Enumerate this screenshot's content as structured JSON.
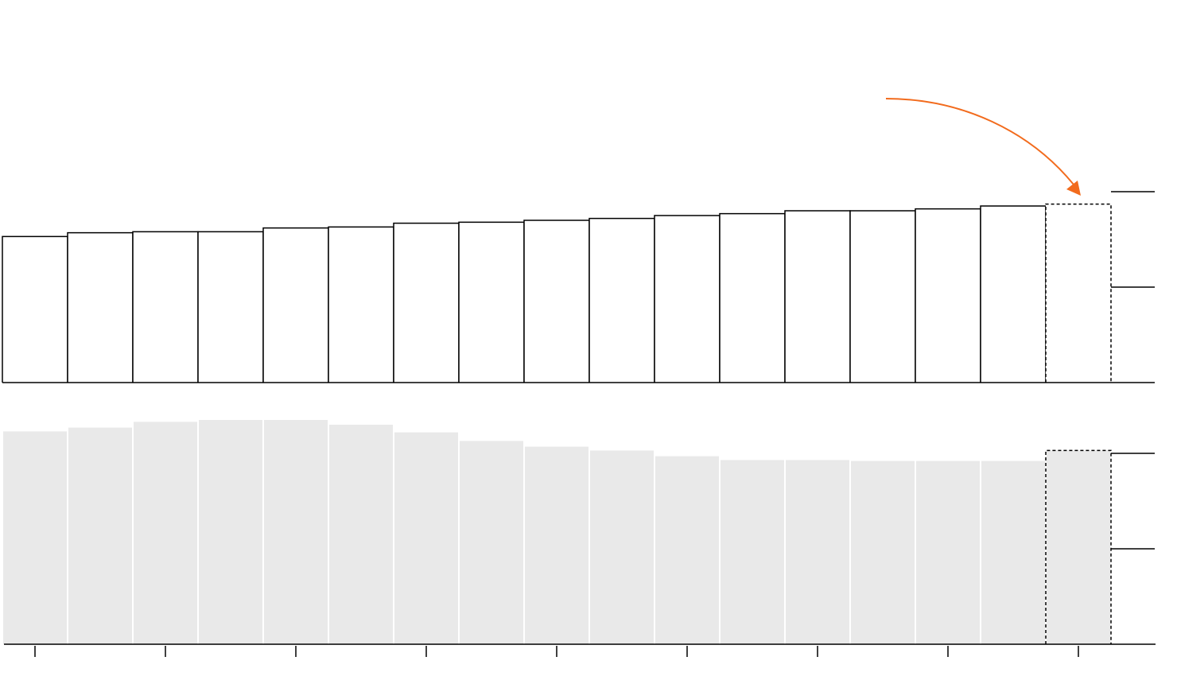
{
  "chart_data": [
    {
      "type": "bar",
      "panel": "top",
      "style": "outlined",
      "values": [
        1.53,
        1.57,
        1.58,
        1.58,
        1.62,
        1.63,
        1.67,
        1.68,
        1.7,
        1.72,
        1.75,
        1.77,
        1.8,
        1.8,
        1.82,
        1.85,
        1.87
      ],
      "projected_last": true,
      "gridlines": [
        1,
        2
      ],
      "ylim": [
        0,
        4
      ],
      "grid": true
    },
    {
      "type": "bar",
      "panel": "bottom",
      "style": "filled",
      "fill_color": "#e9e9e9",
      "values": [
        2.23,
        2.27,
        2.33,
        2.35,
        2.35,
        2.3,
        2.22,
        2.13,
        2.07,
        2.03,
        1.97,
        1.93,
        1.93,
        1.92,
        1.92,
        1.92,
        2.03
      ],
      "projected_last": true,
      "gridlines": [
        1,
        2
      ],
      "ylim": [
        0,
        2.7
      ],
      "grid": true,
      "x_ticks_every": 2
    }
  ],
  "annotation": {
    "type": "arrow",
    "color": "#f26b1d",
    "points_to": "top-projected-bar"
  }
}
